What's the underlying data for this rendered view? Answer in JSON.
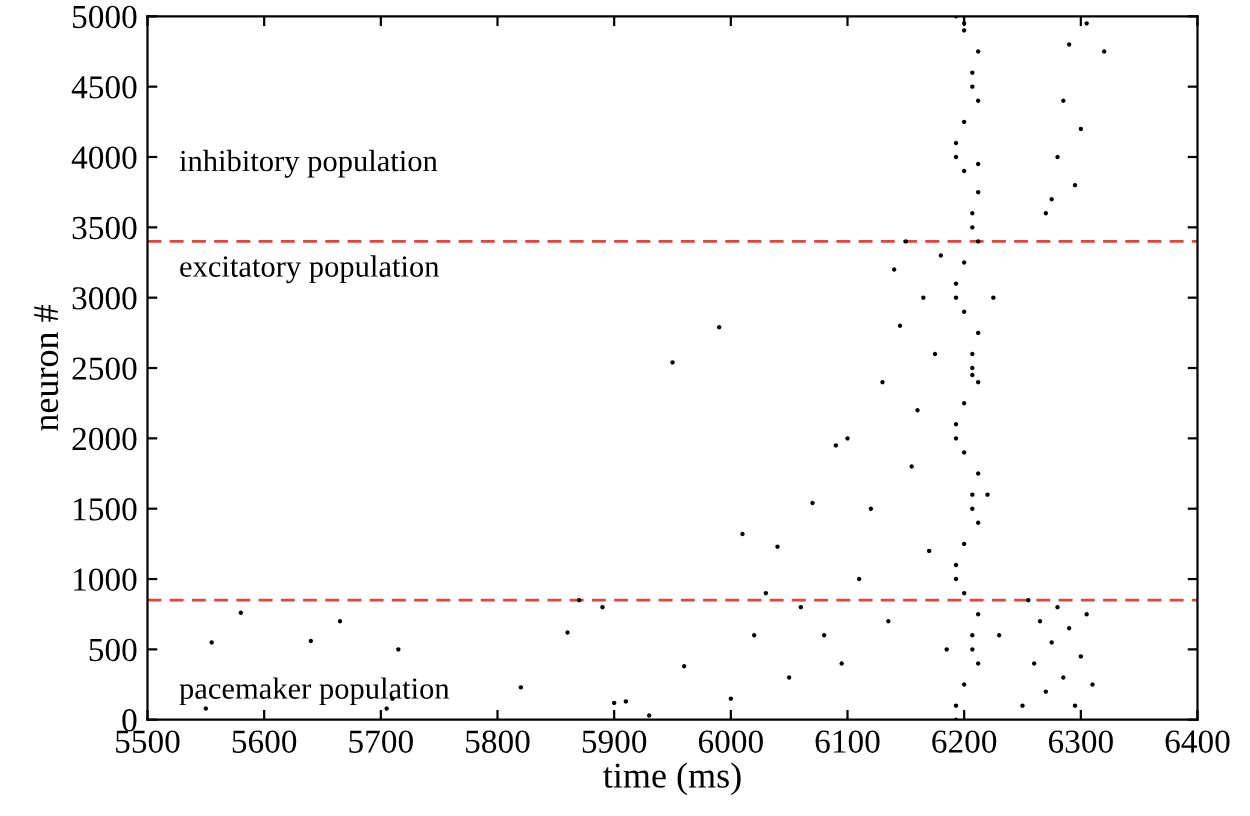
{
  "chart_data": {
    "type": "scatter",
    "xlabel": "time (ms)",
    "ylabel": "neuron #",
    "annotations": [
      "inhibitory population",
      "excitatory population",
      "pacemaker population"
    ],
    "xlim": [
      5500,
      6400
    ],
    "xticks": [
      5500,
      5600,
      5700,
      5800,
      5900,
      6000,
      6100,
      6200,
      6300,
      6400
    ],
    "ylim": [
      0,
      5000
    ],
    "yticks": [
      0,
      500,
      1000,
      1500,
      2000,
      2500,
      3000,
      3500,
      4000,
      4500,
      5000
    ],
    "grid": false,
    "marker": "circle",
    "ref_lines": [
      {
        "axis": "y",
        "value": 3400,
        "color": "#e8433a",
        "line_style": "dashed"
      },
      {
        "axis": "y",
        "value": 850,
        "color": "#e8433a",
        "line_style": "dashed"
      }
    ],
    "series": [
      {
        "color": "#000000",
        "x": [
          5550,
          5555,
          5580,
          5640,
          5665,
          5705,
          5710,
          5715,
          5820,
          5860,
          5870,
          5890,
          5900,
          5910,
          5930,
          5950,
          5960,
          5990,
          6000,
          6010,
          6020,
          6030,
          6040,
          6050,
          6060,
          6070,
          6080,
          6090,
          6095,
          6100,
          6110,
          6120,
          6130,
          6135,
          6140,
          6145,
          6150,
          6155,
          6160,
          6165,
          6170,
          6175,
          6180,
          6185,
          6193,
          6200,
          6207,
          6212,
          6193,
          6200,
          6207,
          6212,
          6193,
          6200,
          6207,
          6212,
          6193,
          6200,
          6207,
          6212,
          6193,
          6200,
          6207,
          6212,
          6193,
          6200,
          6207,
          6212,
          6193,
          6200,
          6207,
          6212,
          6193,
          6200,
          6207,
          6212,
          6193,
          6200,
          6207,
          6212,
          6193,
          6200,
          6207,
          6212,
          6193,
          6200,
          6207,
          6212,
          6220,
          6225,
          6230,
          6250,
          6255,
          6260,
          6265,
          6270,
          6275,
          6280,
          6285,
          6290,
          6295,
          6300,
          6305,
          6310,
          6270,
          6280,
          6285,
          6290,
          6295,
          6300,
          6305,
          6275,
          6320
        ],
        "values": [
          80,
          550,
          760,
          560,
          700,
          80,
          150,
          500,
          230,
          620,
          850,
          800,
          120,
          130,
          30,
          2540,
          380,
          2790,
          150,
          1320,
          600,
          900,
          1230,
          300,
          800,
          1540,
          600,
          1950,
          400,
          2000,
          1000,
          1500,
          2400,
          700,
          3200,
          2800,
          3400,
          1800,
          2200,
          3000,
          1200,
          2600,
          3300,
          500,
          0,
          250,
          500,
          750,
          1000,
          1250,
          1500,
          1750,
          2000,
          2250,
          2500,
          2750,
          3000,
          3250,
          3500,
          3750,
          4000,
          4250,
          4500,
          4750,
          5000,
          4900,
          4600,
          4400,
          4100,
          3900,
          3600,
          3400,
          3100,
          2900,
          2600,
          2400,
          2100,
          1900,
          1600,
          1400,
          1100,
          900,
          600,
          400,
          100,
          4950,
          2450,
          3950,
          1600,
          3000,
          600,
          100,
          850,
          400,
          700,
          200,
          550,
          800,
          300,
          650,
          100,
          450,
          750,
          250,
          3600,
          4000,
          4400,
          4800,
          3800,
          4200,
          4950,
          3700,
          4750
        ]
      }
    ]
  }
}
